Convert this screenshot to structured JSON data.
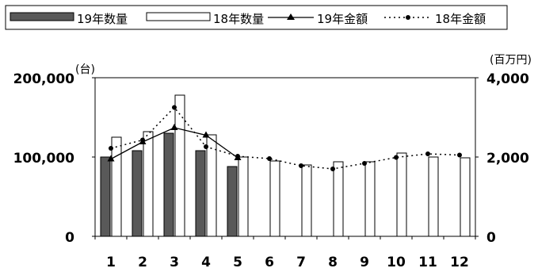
{
  "chart_data": {
    "type": "bar",
    "categories": [
      "1",
      "2",
      "3",
      "4",
      "5",
      "6",
      "7",
      "8",
      "9",
      "10",
      "11",
      "12"
    ],
    "series": [
      {
        "name": "19年数量",
        "kind": "bar",
        "axis": "left",
        "color": "#595959",
        "values": [
          100000,
          108000,
          130000,
          108000,
          88000,
          null,
          null,
          null,
          null,
          null,
          null,
          null
        ]
      },
      {
        "name": "18年数量",
        "kind": "bar",
        "axis": "left",
        "color": "#ffffff",
        "values": [
          125000,
          132000,
          178000,
          128000,
          100000,
          95000,
          90000,
          94000,
          94000,
          105000,
          100000,
          99000
        ]
      },
      {
        "name": "19年金額",
        "kind": "line",
        "axis": "right",
        "marker": "triangle",
        "dash": "solid",
        "values": [
          1950,
          2380,
          2740,
          2550,
          1980,
          null,
          null,
          null,
          null,
          null,
          null,
          null
        ]
      },
      {
        "name": "18年金額",
        "kind": "line",
        "axis": "right",
        "marker": "circle",
        "dash": "dotted",
        "values": [
          2220,
          2430,
          3250,
          2260,
          2020,
          1960,
          1780,
          1700,
          1840,
          1990,
          2080,
          2050
        ]
      }
    ],
    "y_left": {
      "unit": "(台)",
      "ticks": [
        "0",
        "100,000",
        "200,000"
      ],
      "range": [
        0,
        200000
      ]
    },
    "y_right": {
      "unit": "(百万円)",
      "ticks": [
        "0",
        "2,000",
        "4,000"
      ],
      "range": [
        0,
        4000
      ]
    },
    "legend_position": "top-left",
    "grid": false
  }
}
